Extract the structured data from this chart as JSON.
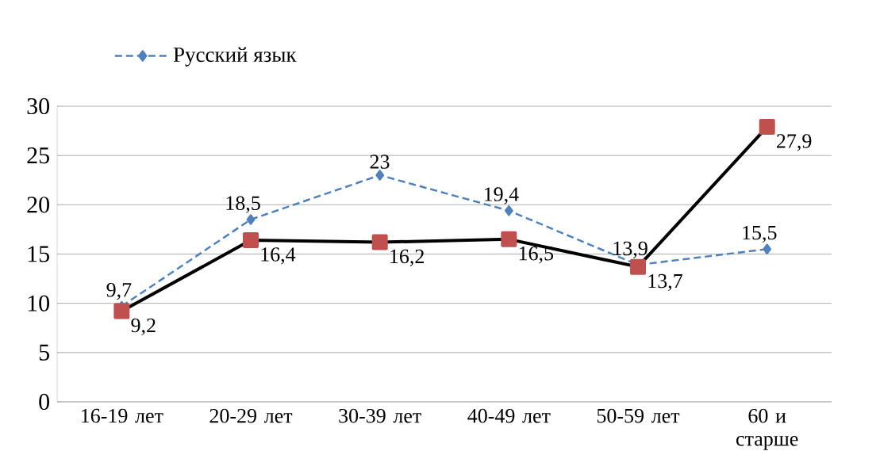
{
  "chart_data": {
    "type": "line",
    "categories": [
      "16-19 лет",
      "20-29 лет",
      "30-39 лет",
      "40-49 лет",
      "50-59 лет",
      "60 и старше"
    ],
    "series": [
      {
        "name": "Русский язык",
        "color": "#4f81bd",
        "marker": "diamond",
        "line_style": "dashed",
        "values": [
          9.7,
          18.5,
          23,
          19.4,
          13.9,
          15.5
        ],
        "value_labels": [
          "9,7",
          "18,5",
          "23",
          "19,4",
          "13,9",
          "15,5"
        ]
      },
      {
        "color": "#000000",
        "colors": [
          "#c0504d",
          "#c0504d",
          "#c0504d",
          "#c0504d",
          "#c0504d",
          "#c0504d"
        ],
        "marker": "square",
        "line_style": "solid",
        "values": [
          9.2,
          16.4,
          16.2,
          16.5,
          13.7,
          27.9
        ],
        "value_labels": [
          "9,2",
          "16,4",
          "16,2",
          "16,5",
          "13,7",
          "27,9"
        ]
      }
    ],
    "ylim": [
      0,
      30
    ],
    "yticks": [
      0,
      5,
      10,
      15,
      20,
      25,
      30
    ],
    "grid": "y",
    "legend": "top left"
  }
}
